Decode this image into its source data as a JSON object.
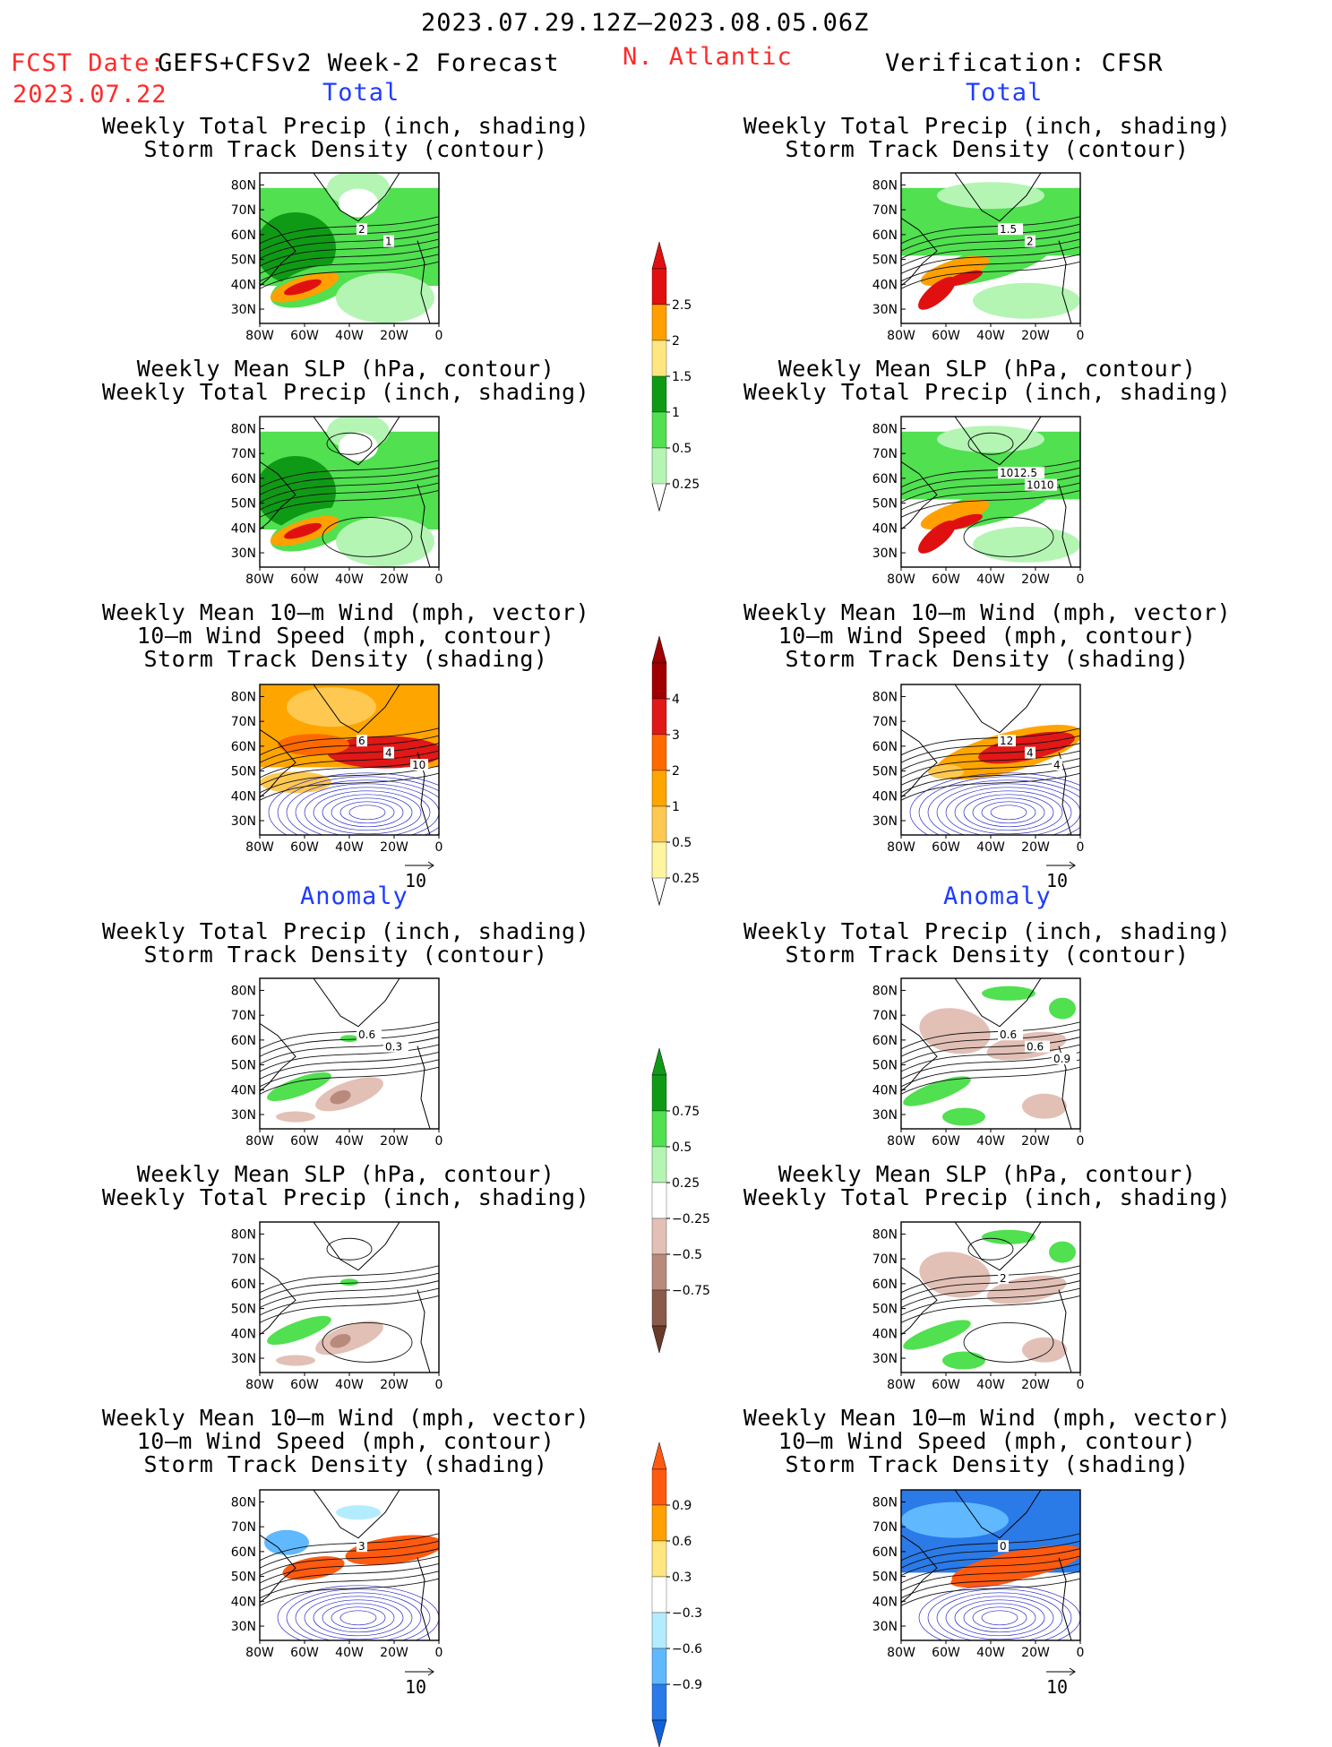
{
  "header": {
    "date_range": "2023.07.29.12Z–2023.08.05.06Z",
    "fcst_label": "FCST Date:",
    "fcst_model": "GEFS+CFSv2 Week-2 Forecast",
    "fcst_date": "2023.07.22",
    "region": "N. Atlantic",
    "verification": "Verification: CFSR"
  },
  "sections": {
    "total_left": "Total",
    "total_right": "Total",
    "anomaly_left": "Anomaly",
    "anomaly_right": "Anomaly"
  },
  "titles": {
    "precip_track": [
      "Weekly Total Precip (inch, shading)",
      "Storm Track Density (contour)"
    ],
    "slp_precip": [
      "Weekly Mean SLP (hPa, contour)",
      "Weekly Total Precip (inch, shading)"
    ],
    "wind": [
      "Weekly Mean 10–m Wind (mph, vector)",
      "10–m Wind Speed (mph, contour)",
      "Storm Track Density (shading)"
    ]
  },
  "axes": {
    "lat_ticks": [
      "80N",
      "70N",
      "60N",
      "50N",
      "40N",
      "30N"
    ],
    "lon_ticks": [
      "80W",
      "60W",
      "40W",
      "20W",
      "0"
    ]
  },
  "vector_ref": "10",
  "colorbars": [
    {
      "labels": [
        "2.5",
        "2",
        "1.5",
        "1",
        "0.5",
        "0.25"
      ],
      "colors": [
        "#e01010",
        "#ffa000",
        "#ffe680",
        "#0f9a16",
        "#50e050",
        "#b4f5b4"
      ],
      "tip_top": "#e01010"
    },
    {
      "labels": [
        "4",
        "3",
        "2",
        "1",
        "0.5",
        "0.25"
      ],
      "colors": [
        "#a00000",
        "#e01818",
        "#ff6a00",
        "#ffa500",
        "#ffc850",
        "#fff5a0"
      ],
      "tip_top": "#a00000"
    },
    {
      "labels": [
        "0.75",
        "0.5",
        "0.25",
        "−0.25",
        "−0.5",
        "−0.75"
      ],
      "colors": [
        "#0f9a16",
        "#50e050",
        "#b4f5b4",
        "#ffffff",
        "#e2c0b6",
        "#b88a7c",
        "#8a5a4a"
      ],
      "tip_top": "#0f9a16",
      "tip_bottom": "#6a3a2a"
    },
    {
      "labels": [
        "0.9",
        "0.6",
        "0.3",
        "−0.3",
        "−0.6",
        "−0.9"
      ],
      "colors": [
        "#ff5a10",
        "#ffa000",
        "#ffe680",
        "#ffffff",
        "#b4ecff",
        "#60b8ff",
        "#2a7ae8"
      ],
      "tip_top": "#ff5a10",
      "tip_bottom": "#1060d8"
    }
  ],
  "panel_labels": {
    "fc_precip_track": [
      "2",
      "1"
    ],
    "fc_wind": [
      "6",
      "4",
      "10"
    ],
    "ob_precip_track": [
      "1.5",
      "2"
    ],
    "ob_slp": [
      "1012.5",
      "1010"
    ],
    "ob_wind": [
      "12",
      "4",
      "4"
    ],
    "fc_precip_track_anom": [
      "0.6",
      "0.3"
    ],
    "ob_precip_track_anom": [
      "0.6",
      "0.6",
      "0.9"
    ],
    "ob_slp_anom": [
      "2"
    ],
    "fc_wind_anom": [
      "3"
    ],
    "ob_wind_anom": [
      "0"
    ]
  },
  "chart_data": [
    {
      "type": "heatmap",
      "region": "N. Atlantic",
      "field": "Weekly Total Precip / Storm Track Density",
      "source": "GEFS+CFSv2 Week-2 Forecast",
      "lat_range": [
        25,
        85
      ],
      "lon_range": [
        -80,
        0
      ]
    },
    {
      "type": "heatmap",
      "region": "N. Atlantic",
      "field": "Weekly Mean SLP / Weekly Total Precip",
      "source": "GEFS+CFSv2 Week-2 Forecast",
      "lat_range": [
        25,
        85
      ],
      "lon_range": [
        -80,
        0
      ]
    },
    {
      "type": "heatmap",
      "region": "N. Atlantic",
      "field": "10-m Wind / Storm Track Density",
      "source": "GEFS+CFSv2 Week-2 Forecast",
      "lat_range": [
        25,
        85
      ],
      "lon_range": [
        -80,
        0
      ]
    },
    {
      "type": "heatmap",
      "region": "N. Atlantic",
      "field": "Weekly Total Precip / Storm Track Density",
      "source": "CFSR",
      "lat_range": [
        25,
        85
      ],
      "lon_range": [
        -80,
        0
      ]
    },
    {
      "type": "heatmap",
      "region": "N. Atlantic",
      "field": "Weekly Mean SLP / Weekly Total Precip",
      "source": "CFSR",
      "lat_range": [
        25,
        85
      ],
      "lon_range": [
        -80,
        0
      ]
    },
    {
      "type": "heatmap",
      "region": "N. Atlantic",
      "field": "10-m Wind / Storm Track Density",
      "source": "CFSR",
      "lat_range": [
        25,
        85
      ],
      "lon_range": [
        -80,
        0
      ]
    }
  ]
}
